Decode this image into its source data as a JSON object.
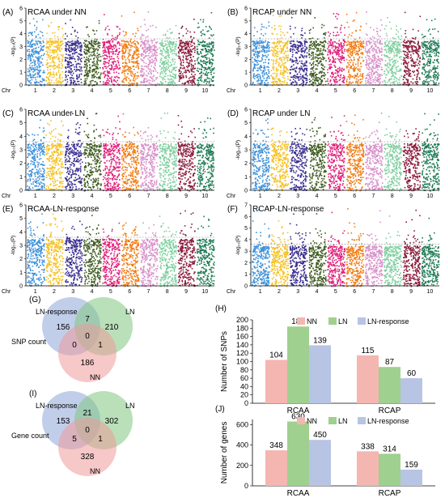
{
  "manhattan_panels": [
    {
      "tag": "(A)",
      "title": "RCAA under NN",
      "ylabel": "-log₁₀(P)",
      "ylim": [
        0,
        6
      ],
      "yticks": [
        0,
        1,
        2,
        3,
        4,
        5,
        6
      ],
      "xlabel": "Chr",
      "chromosomes": [
        "1",
        "2",
        "3",
        "4",
        "5",
        "6",
        "7",
        "8",
        "9",
        "10"
      ],
      "threshold": 3.6
    },
    {
      "tag": "(B)",
      "title": "RCAP under NN",
      "ylabel": "-log₁₀(P)",
      "ylim": [
        0,
        6
      ],
      "yticks": [
        0,
        1,
        2,
        3,
        4,
        5,
        6
      ],
      "xlabel": "Chr",
      "chromosomes": [
        "1",
        "2",
        "3",
        "4",
        "5",
        "6",
        "7",
        "8",
        "9",
        "10"
      ],
      "threshold": 3.6
    },
    {
      "tag": "(C)",
      "title": "RCAA under LN",
      "ylabel": "-log₁₀(P)",
      "ylim": [
        0,
        6
      ],
      "yticks": [
        0,
        1,
        2,
        3,
        4,
        5,
        6
      ],
      "xlabel": "Chr",
      "chromosomes": [
        "1",
        "2",
        "3",
        "4",
        "5",
        "6",
        "7",
        "8",
        "9",
        "10"
      ],
      "threshold": 3.6
    },
    {
      "tag": "(D)",
      "title": "RCAP under LN",
      "ylabel": "-log₁₀(P)",
      "ylim": [
        0,
        6
      ],
      "yticks": [
        0,
        1,
        2,
        3,
        4,
        5,
        6
      ],
      "xlabel": "Chr",
      "chromosomes": [
        "1",
        "2",
        "3",
        "4",
        "5",
        "6",
        "7",
        "8",
        "9",
        "10"
      ],
      "threshold": 3.6
    },
    {
      "tag": "(E)",
      "title": "RCAA-LN-response",
      "ylabel": "-log₁₀(P)",
      "ylim": [
        0,
        6
      ],
      "yticks": [
        0,
        1,
        2,
        3,
        4,
        5,
        6
      ],
      "xlabel": "Chr",
      "chromosomes": [
        "1",
        "2",
        "3",
        "4",
        "5",
        "6",
        "7",
        "8",
        "9",
        "10"
      ],
      "threshold": 3.6
    },
    {
      "tag": "(F)",
      "title": "RCAP-LN-response",
      "ylabel": "-log₁₀(P)",
      "ylim": [
        0,
        7
      ],
      "yticks": [
        0,
        1,
        2,
        3,
        4,
        5,
        6,
        7
      ],
      "xlabel": "Chr",
      "chromosomes": [
        "1",
        "2",
        "3",
        "4",
        "5",
        "6",
        "7",
        "8",
        "9",
        "10"
      ],
      "threshold": 3.6
    }
  ],
  "chromosome_colors": [
    "#3b8fd9",
    "#f5c020",
    "#3a2f8f",
    "#3d5a1e",
    "#e0207a",
    "#f07a10",
    "#d88ec8",
    "#7fcf9f",
    "#8a1a3a",
    "#1e7a55"
  ],
  "venn_panels": [
    {
      "tag": "(G)",
      "label": "SNP count",
      "sets": [
        "LN-response",
        "LN",
        "NN"
      ],
      "regions": {
        "response_only": "156",
        "ln_only": "210",
        "nn_only": "186",
        "response_ln": "7",
        "response_nn": "0",
        "ln_nn": "1",
        "all": "0"
      }
    },
    {
      "tag": "(I)",
      "label": "Gene count",
      "sets": [
        "LN-response",
        "LN",
        "NN"
      ],
      "regions": {
        "response_only": "153",
        "ln_only": "302",
        "nn_only": "328",
        "response_ln": "21",
        "response_nn": "5",
        "ln_nn": "1",
        "all": "0"
      }
    }
  ],
  "venn_colors": {
    "response": "#8ea6d8",
    "ln": "#7fc77f",
    "nn": "#ef9a9a"
  },
  "chart_data": [
    {
      "type": "bar",
      "tag": "(H)",
      "ylabel": "Number of SNPs",
      "categories": [
        "RCAA",
        "RCAP"
      ],
      "ylim": [
        0,
        200
      ],
      "yticks": [
        0,
        20,
        40,
        60,
        80,
        100,
        120,
        140,
        160,
        180,
        200
      ],
      "series": [
        {
          "name": "NN",
          "values": [
            104,
            115
          ],
          "color": "#f4b6b0"
        },
        {
          "name": "LN",
          "values": [
            184,
            87
          ],
          "color": "#9fd08f"
        },
        {
          "name": "LN-response",
          "values": [
            139,
            60
          ],
          "color": "#b8c4e4"
        }
      ],
      "legend": "top-right"
    },
    {
      "type": "bar",
      "tag": "(J)",
      "ylabel": "Number of genes",
      "categories": [
        "RCAA",
        "RCAP"
      ],
      "ylim": [
        0,
        650
      ],
      "yticks": [
        0,
        200,
        400,
        600
      ],
      "series": [
        {
          "name": "NN",
          "values": [
            348,
            338
          ],
          "color": "#f4b6b0"
        },
        {
          "name": "LN",
          "values": [
            630,
            314
          ],
          "color": "#9fd08f"
        },
        {
          "name": "LN-response",
          "values": [
            450,
            159
          ],
          "color": "#b8c4e4"
        }
      ],
      "legend": "top-right"
    }
  ]
}
